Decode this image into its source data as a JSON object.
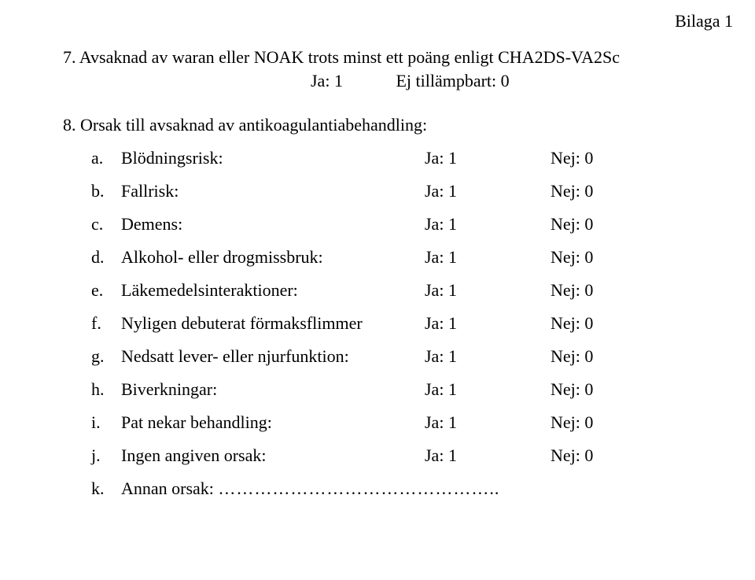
{
  "header": {
    "bilaga": "Bilaga 1"
  },
  "q7": {
    "text": "7. Avsaknad av waran eller NOAK trots minst ett poäng enligt CHA2DS-VA2Sc",
    "ja": "Ja: 1",
    "ej": "Ej tillämpbart: 0"
  },
  "q8": {
    "text": "8. Orsak till avsaknad av antikoagulantiabehandling:"
  },
  "items": [
    {
      "letter": "a.",
      "label": "Blödningsrisk:",
      "ja": "Ja: 1",
      "nej": "Nej: 0"
    },
    {
      "letter": "b.",
      "label": "Fallrisk:",
      "ja": "Ja: 1",
      "nej": "Nej: 0"
    },
    {
      "letter": "c.",
      "label": "Demens:",
      "ja": "Ja: 1",
      "nej": "Nej: 0"
    },
    {
      "letter": "d.",
      "label": "Alkohol- eller drogmissbruk:",
      "ja": "Ja: 1",
      "nej": "Nej: 0"
    },
    {
      "letter": "e.",
      "label": "Läkemedelsinteraktioner:",
      "ja": "Ja: 1",
      "nej": "Nej: 0"
    },
    {
      "letter": "f.",
      "label": "Nyligen debuterat förmaksflimmer",
      "ja": "Ja: 1",
      "nej": "Nej: 0"
    },
    {
      "letter": "g.",
      "label": "Nedsatt lever- eller njurfunktion:",
      "ja": "Ja: 1",
      "nej": "Nej: 0"
    },
    {
      "letter": "h.",
      "label": "Biverkningar:",
      "ja": "Ja: 1",
      "nej": "Nej: 0"
    },
    {
      "letter": "i.",
      "label": "Pat nekar behandling:",
      "ja": "Ja: 1",
      "nej": "Nej: 0"
    },
    {
      "letter": "j.",
      "label": "Ingen angiven orsak:",
      "ja": "Ja: 1",
      "nej": "Nej: 0"
    }
  ],
  "lastItem": {
    "letter": "k.",
    "label": "Annan orsak: ",
    "dots": "……………………………………….."
  }
}
